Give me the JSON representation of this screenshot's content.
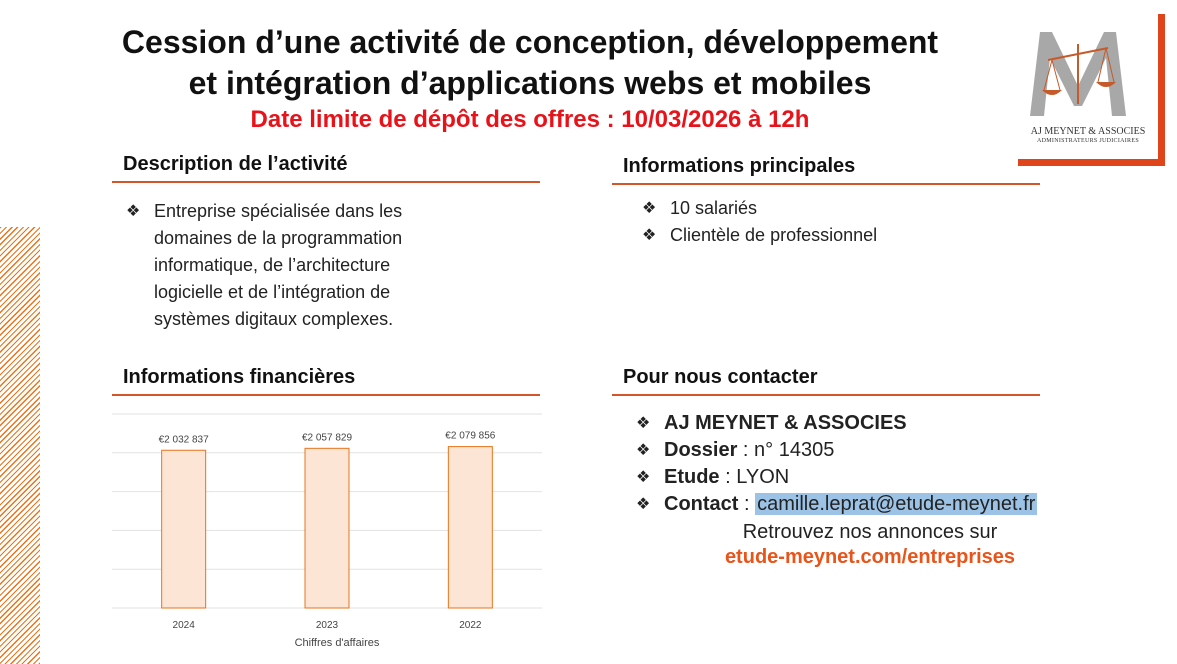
{
  "header": {
    "title_line1": "Cession d’une activité de conception, développement",
    "title_line2": "et intégration d’applications webs et mobiles",
    "deadline": "Date limite de dépôt des offres : 10/03/2026 à 12h"
  },
  "logo": {
    "name": "AJ MEYNET & ASSOCIES",
    "subtitle": "ADMINISTRATEURS JUDICIAIRES",
    "icon": "scales-of-justice-icon",
    "accent_color": "#e0441a"
  },
  "description": {
    "heading": "Description de l’activité",
    "lines": [
      "Entreprise spécialisée dans les",
      "domaines de la programmation",
      "informatique, de l’architecture",
      "logicielle et de l’intégration de",
      "systèmes digitaux complexes."
    ]
  },
  "main_info": {
    "heading": "Informations principales",
    "items": [
      "10 salariés",
      "Clientèle de professionnel"
    ]
  },
  "financial": {
    "heading": "Informations financières"
  },
  "contact": {
    "heading": "Pour nous contacter",
    "firm": "AJ MEYNET & ASSOCIES",
    "dossier_label": "Dossier",
    "dossier_value": " : n° 14305",
    "etude_label": "Etude",
    "etude_value": " : LYON",
    "contact_label": "Contact",
    "contact_sep": " : ",
    "email": "camille.leprat@etude-meynet.fr",
    "retrouvez": "Retrouvez nos annonces sur",
    "site": "etude-meynet.com/entreprises"
  },
  "colors": {
    "deadline": "#e8131a",
    "accent": "#d5552a",
    "bar_fill": "#fde5d6",
    "bar_stroke": "#e8731a",
    "email_highlight": "#9cc3e6"
  },
  "chart_data": {
    "type": "bar",
    "categories": [
      "2024",
      "2023",
      "2022"
    ],
    "values": [
      2032837,
      2057829,
      2079856
    ],
    "value_labels": [
      "€2 032 837",
      "€2 057 829",
      "€2 079 856"
    ],
    "title": "",
    "xlabel": "Chiffres d'affaires",
    "ylabel": "",
    "ylim": [
      0,
      2500000
    ],
    "grid": true,
    "legend": false
  }
}
